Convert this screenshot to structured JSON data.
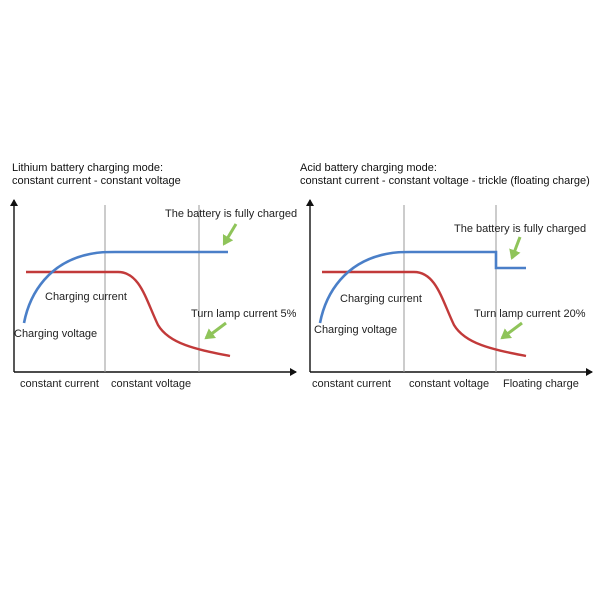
{
  "colors": {
    "voltage": "#4a7fc8",
    "current": "#c23a3a",
    "arrow": "#8fc45a",
    "axis": "#111111",
    "divider": "#9a9a9a"
  },
  "left": {
    "title_line1": "Lithium battery charging mode:",
    "title_line2": "constant current - constant voltage",
    "fully_charged": "The battery is fully charged",
    "charging_current": "Charging current",
    "charging_voltage": "Charging voltage",
    "turn_lamp": "Turn lamp current 5%",
    "phase1": "constant current",
    "phase2": "constant voltage"
  },
  "right": {
    "title_line1": "Acid battery charging mode:",
    "title_line2": "constant current - constant voltage - trickle (floating charge)",
    "fully_charged": "The battery is fully charged",
    "charging_current": "Charging current",
    "charging_voltage": "Charging voltage",
    "turn_lamp": "Turn lamp current 20%",
    "phase1": "constant current",
    "phase2": "constant voltage",
    "phase3": "Floating charge"
  }
}
